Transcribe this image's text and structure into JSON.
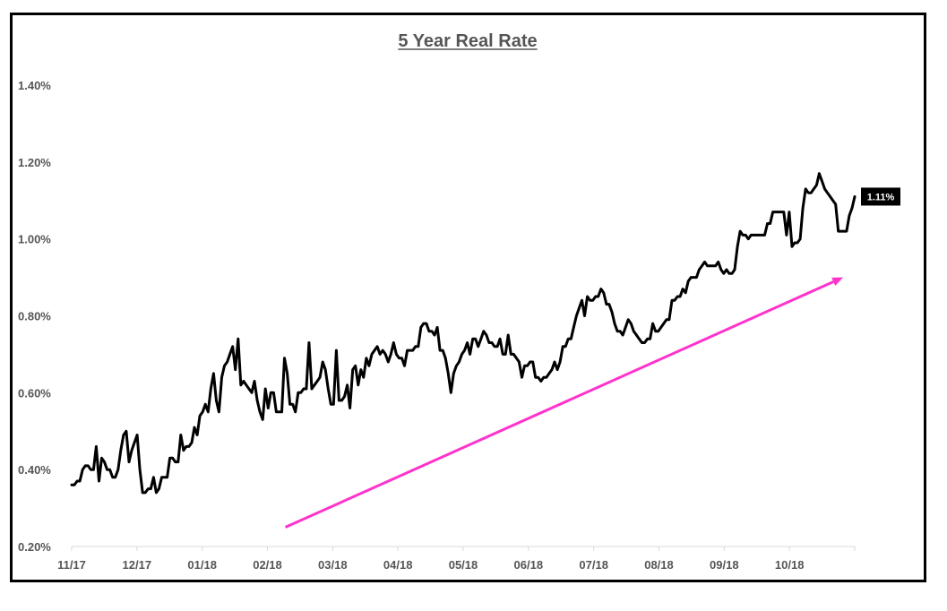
{
  "chart_data": {
    "type": "line",
    "title": "5 Year Real Rate",
    "xlabel": "",
    "ylabel": "",
    "ylim": [
      0.2,
      1.4
    ],
    "y_ticks": [
      "0.20%",
      "0.40%",
      "0.60%",
      "0.80%",
      "1.00%",
      "1.20%",
      "1.40%"
    ],
    "x_ticks": [
      "11/17",
      "12/17",
      "01/18",
      "02/18",
      "03/18",
      "04/18",
      "05/18",
      "06/18",
      "07/18",
      "08/18",
      "09/18",
      "10/18"
    ],
    "grid": false,
    "legend": "none",
    "last_value_label": "1.11%",
    "series": [
      {
        "color": "#000000",
        "values": [
          0.36,
          0.36,
          0.37,
          0.37,
          0.4,
          0.41,
          0.41,
          0.4,
          0.4,
          0.46,
          0.37,
          0.43,
          0.42,
          0.4,
          0.4,
          0.38,
          0.38,
          0.4,
          0.45,
          0.49,
          0.5,
          0.42,
          0.45,
          0.47,
          0.49,
          0.4,
          0.34,
          0.34,
          0.35,
          0.35,
          0.38,
          0.34,
          0.35,
          0.38,
          0.38,
          0.38,
          0.43,
          0.43,
          0.42,
          0.42,
          0.49,
          0.45,
          0.46,
          0.46,
          0.47,
          0.51,
          0.49,
          0.54,
          0.55,
          0.57,
          0.55,
          0.61,
          0.65,
          0.58,
          0.55,
          0.64,
          0.67,
          0.68,
          0.7,
          0.72,
          0.66,
          0.74,
          0.62,
          0.63,
          0.62,
          0.61,
          0.6,
          0.63,
          0.58,
          0.55,
          0.53,
          0.61,
          0.56,
          0.6,
          0.6,
          0.55,
          0.55,
          0.55,
          0.69,
          0.65,
          0.57,
          0.57,
          0.55,
          0.6,
          0.6,
          0.61,
          0.61,
          0.73,
          0.61,
          0.62,
          0.63,
          0.64,
          0.68,
          0.66,
          0.61,
          0.57,
          0.57,
          0.71,
          0.58,
          0.58,
          0.59,
          0.62,
          0.56,
          0.66,
          0.67,
          0.62,
          0.66,
          0.64,
          0.69,
          0.67,
          0.7,
          0.71,
          0.72,
          0.7,
          0.71,
          0.7,
          0.68,
          0.7,
          0.73,
          0.7,
          0.69,
          0.69,
          0.67,
          0.71,
          0.71,
          0.71,
          0.72,
          0.72,
          0.77,
          0.78,
          0.78,
          0.76,
          0.76,
          0.75,
          0.77,
          0.71,
          0.71,
          0.69,
          0.65,
          0.6,
          0.65,
          0.67,
          0.68,
          0.7,
          0.71,
          0.73,
          0.7,
          0.74,
          0.74,
          0.72,
          0.74,
          0.76,
          0.75,
          0.73,
          0.73,
          0.72,
          0.72,
          0.74,
          0.7,
          0.7,
          0.75,
          0.7,
          0.7,
          0.69,
          0.68,
          0.64,
          0.67,
          0.67,
          0.68,
          0.68,
          0.64,
          0.64,
          0.63,
          0.64,
          0.64,
          0.65,
          0.66,
          0.68,
          0.66,
          0.68,
          0.72,
          0.72,
          0.74,
          0.74,
          0.77,
          0.8,
          0.82,
          0.84,
          0.8,
          0.85,
          0.84,
          0.84,
          0.85,
          0.85,
          0.87,
          0.86,
          0.83,
          0.83,
          0.81,
          0.78,
          0.76,
          0.76,
          0.75,
          0.77,
          0.79,
          0.78,
          0.76,
          0.75,
          0.74,
          0.73,
          0.73,
          0.74,
          0.74,
          0.78,
          0.76,
          0.76,
          0.77,
          0.78,
          0.79,
          0.79,
          0.84,
          0.84,
          0.85,
          0.85,
          0.87,
          0.86,
          0.89,
          0.9,
          0.9,
          0.9,
          0.92,
          0.93,
          0.94,
          0.93,
          0.93,
          0.93,
          0.93,
          0.94,
          0.92,
          0.91,
          0.92,
          0.91,
          0.91,
          0.92,
          0.98,
          1.02,
          1.01,
          1.01,
          1.0,
          1.01,
          1.01,
          1.01,
          1.01,
          1.01,
          1.01,
          1.04,
          1.04,
          1.07,
          1.07,
          1.07,
          1.07,
          1.07,
          1.01,
          1.07,
          0.98,
          0.99,
          0.99,
          1.0,
          1.08,
          1.13,
          1.12,
          1.12,
          1.13,
          1.14,
          1.17,
          1.15,
          1.13,
          1.12,
          1.11,
          1.1,
          1.09,
          1.02,
          1.02,
          1.02,
          1.02,
          1.06,
          1.08,
          1.11
        ]
      }
    ],
    "annotations": [
      {
        "type": "arrow",
        "color": "#ff33cc",
        "from": {
          "x": "02/18",
          "y": 0.25
        },
        "to": {
          "x": "10/18",
          "y": 0.9
        }
      }
    ]
  }
}
